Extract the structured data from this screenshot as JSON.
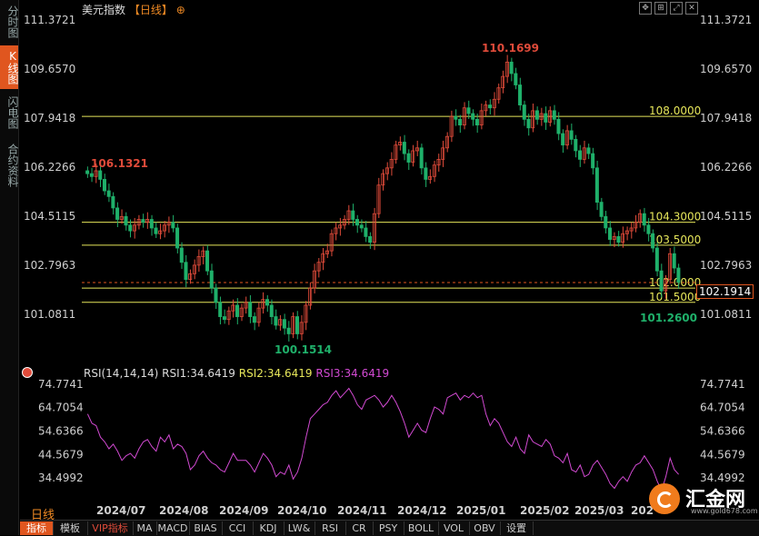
{
  "sidebar": {
    "tabs": [
      {
        "label": "分时图",
        "active": false
      },
      {
        "label": "K线图",
        "active": true
      },
      {
        "label": "闪电图",
        "active": false
      },
      {
        "label": "合约资料",
        "active": false
      }
    ]
  },
  "header": {
    "title": "美元指数",
    "period": "【日线】",
    "gear_icon": "⊕"
  },
  "toolbar_icons": [
    "move-icon",
    "zoom-icon",
    "expand-icon",
    "close-icon"
  ],
  "price_axis": {
    "ticks": [
      "111.3721",
      "109.6570",
      "107.9418",
      "106.2266",
      "104.5115",
      "102.7963",
      "101.0811"
    ]
  },
  "current_price": "102.1914",
  "rsi": {
    "legend": "RSI(14,14,14)",
    "rsi1": "RSI1:34.6419",
    "rsi2": "RSI2:34.6419",
    "rsi3": "RSI3:34.6419",
    "ticks": [
      "74.7741",
      "64.7054",
      "54.6366",
      "44.5679",
      "34.4992"
    ]
  },
  "colors": {
    "up": "#e04b3a",
    "down": "#1fb06a",
    "hline": "#e6e65a",
    "rsi": "#d24ad2",
    "rsi2": "#e6e65a"
  },
  "annotations": {
    "high": "110.1699",
    "start": "106.1321",
    "low": "100.1514",
    "recent_low": "101.2600"
  },
  "levels": [
    "108.0000",
    "104.3000",
    "103.5000",
    "102.0000",
    "101.5000"
  ],
  "dates": [
    "2024/07",
    "2024/08",
    "2024/09",
    "2024/10",
    "2024/11",
    "2024/12",
    "2025/01",
    "2025/02",
    "2025/03",
    "202"
  ],
  "period_label": "日线",
  "bottom_tabs": [
    "指标",
    "模板",
    "VIP指标",
    "MA",
    "MACD",
    "BIAS",
    "CCI",
    "KDJ",
    "LW&",
    "RSI",
    "CR",
    "PSY",
    "BOLL",
    "VOL",
    "OBV",
    "设置"
  ],
  "logo": {
    "name": "汇金网",
    "url": "www.gold678.com"
  },
  "chart_data": {
    "type": "candlestick",
    "price_range": [
      99.5,
      111.6
    ],
    "closes": [
      106.0,
      105.9,
      106.1,
      105.8,
      105.4,
      105.2,
      104.8,
      104.4,
      104.5,
      104.2,
      104.0,
      104.2,
      104.4,
      104.3,
      104.4,
      104.1,
      103.9,
      104.0,
      104.2,
      104.3,
      104.1,
      103.4,
      102.9,
      102.3,
      102.5,
      102.8,
      103.1,
      103.3,
      102.6,
      102.0,
      101.5,
      101.0,
      100.9,
      101.2,
      101.4,
      101.0,
      101.3,
      101.5,
      101.0,
      100.8,
      101.3,
      101.6,
      101.4,
      101.0,
      100.7,
      100.9,
      100.6,
      100.4,
      101.0,
      100.4,
      100.8,
      101.4,
      102.0,
      102.6,
      102.9,
      103.2,
      103.3,
      103.9,
      104.1,
      104.2,
      104.4,
      104.7,
      104.4,
      104.2,
      104.1,
      103.8,
      103.6,
      104.6,
      105.6,
      106.0,
      106.2,
      106.5,
      107.0,
      107.1,
      106.7,
      106.4,
      106.8,
      106.9,
      106.2,
      105.8,
      105.9,
      106.3,
      106.5,
      106.9,
      107.3,
      108.0,
      107.9,
      107.7,
      108.3,
      108.1,
      107.9,
      107.7,
      108.2,
      108.4,
      108.3,
      108.6,
      109.0,
      109.4,
      109.9,
      109.5,
      109.1,
      108.4,
      107.9,
      107.6,
      108.2,
      107.9,
      108.1,
      107.8,
      108.2,
      107.9,
      107.4,
      107.0,
      107.5,
      107.2,
      106.8,
      106.5,
      106.9,
      106.7,
      106.2,
      105.0,
      104.5,
      104.1,
      103.7,
      103.8,
      103.6,
      103.9,
      104.0,
      104.1,
      104.3,
      104.6,
      104.2,
      103.9,
      103.4,
      102.6,
      101.9,
      102.3,
      103.2,
      102.7,
      102.2
    ],
    "rsi": [
      62,
      58,
      57,
      52,
      50,
      47,
      49,
      46,
      42,
      44,
      45,
      43,
      47,
      50,
      51,
      48,
      46,
      52,
      50,
      53,
      47,
      49,
      48,
      45,
      38,
      40,
      44,
      46,
      43,
      41,
      40,
      38,
      37,
      41,
      45,
      42,
      42,
      42,
      40,
      37,
      41,
      45,
      43,
      40,
      35,
      37,
      36,
      40,
      34,
      37,
      43,
      52,
      60,
      62,
      64,
      66,
      67,
      70,
      72,
      69,
      71,
      73,
      70,
      66,
      64,
      68,
      69,
      70,
      68,
      65,
      67,
      70,
      67,
      63,
      58,
      52,
      55,
      58,
      55,
      54,
      60,
      65,
      64,
      62,
      69,
      70,
      71,
      68,
      70,
      69,
      71,
      69,
      70,
      62,
      57,
      60,
      58,
      54,
      50,
      48,
      52,
      47,
      45,
      53,
      50,
      49,
      48,
      51,
      49,
      44,
      43,
      41,
      45,
      38,
      37,
      40,
      35,
      36,
      40,
      42,
      39,
      36,
      32,
      30,
      33,
      35,
      33,
      37,
      40,
      41,
      44,
      41,
      38,
      33,
      29,
      35,
      43,
      38,
      36
    ]
  }
}
